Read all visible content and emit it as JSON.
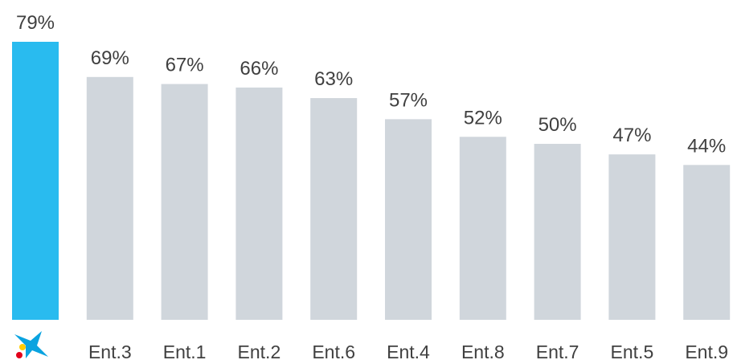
{
  "chart_data": {
    "type": "bar",
    "title": "",
    "xlabel": "",
    "ylabel": "",
    "ylim": [
      0,
      79
    ],
    "grid": false,
    "legend": "none",
    "categories": [
      "logo",
      "Ent.3",
      "Ent.1",
      "Ent.2",
      "Ent.6",
      "Ent.4",
      "Ent.8",
      "Ent.7",
      "Ent.5",
      "Ent.9"
    ],
    "values": [
      79,
      69,
      67,
      66,
      63,
      57,
      52,
      50,
      47,
      44
    ],
    "value_labels": [
      "79%",
      "69%",
      "67%",
      "66%",
      "63%",
      "57%",
      "52%",
      "50%",
      "47%",
      "44%"
    ],
    "highlight_index": 0,
    "colors": {
      "highlight": "#29BBEF",
      "default": "#D0D6DC",
      "text": "#404040",
      "logo_blue": "#0AA3E0",
      "logo_red": "#E2001A",
      "logo_yellow": "#FFCC00"
    },
    "first_category_icon": "caixabank-star-logo-icon"
  }
}
